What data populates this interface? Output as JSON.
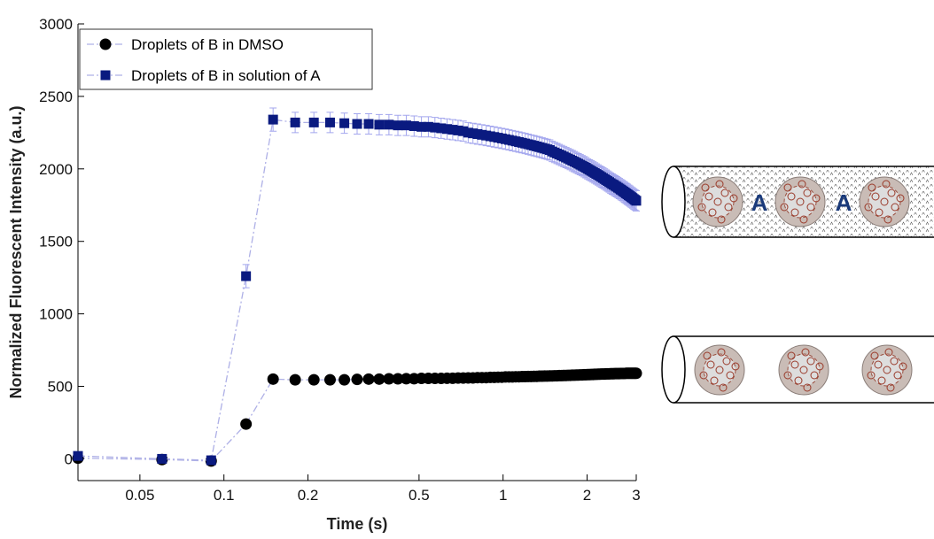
{
  "chart_data": {
    "type": "line",
    "xlabel": "Time (s)",
    "ylabel": "Normalized Fluorescent Intensity (a.u.)",
    "xscale": "log",
    "xlim": [
      0.03,
      3
    ],
    "xticks": [
      0.05,
      0.1,
      0.2,
      0.5,
      1,
      2,
      3
    ],
    "ylim": [
      -150,
      3000
    ],
    "yticks": [
      0,
      500,
      1000,
      1500,
      2000,
      2500,
      3000
    ],
    "legend": "upper left",
    "line_color": "#aeb0e6",
    "error_color": "#a3a6ee",
    "x": [
      0.03,
      0.06,
      0.09,
      0.12,
      0.15,
      0.18,
      0.21,
      0.24,
      0.27,
      0.3,
      0.33,
      0.36,
      0.39,
      0.42,
      0.45,
      0.48,
      0.51,
      0.54,
      0.57,
      0.6,
      0.63,
      0.66,
      0.69,
      0.72,
      0.75,
      0.78,
      0.81,
      0.84,
      0.87,
      0.9,
      0.93,
      0.96,
      0.99,
      1.02,
      1.05,
      1.08,
      1.11,
      1.14,
      1.17,
      1.2,
      1.23,
      1.26,
      1.29,
      1.32,
      1.35,
      1.38,
      1.41,
      1.44,
      1.47,
      1.5,
      1.53,
      1.56,
      1.59,
      1.62,
      1.65,
      1.68,
      1.71,
      1.74,
      1.77,
      1.8,
      1.83,
      1.86,
      1.89,
      1.92,
      1.95,
      1.98,
      2.01,
      2.04,
      2.07,
      2.1,
      2.13,
      2.16,
      2.19,
      2.22,
      2.25,
      2.28,
      2.31,
      2.34,
      2.37,
      2.4,
      2.43,
      2.46,
      2.49,
      2.52,
      2.55,
      2.58,
      2.61,
      2.64,
      2.67,
      2.7,
      2.73,
      2.76,
      2.79,
      2.82,
      2.85,
      2.88,
      2.91,
      2.94,
      2.97,
      3
    ],
    "series": [
      {
        "name": "Droplets of B in DMSO",
        "color": "#000000",
        "marker": "circle",
        "values": [
          5,
          -5,
          -15,
          240,
          550,
          545,
          545,
          545,
          545,
          548,
          550,
          550,
          552,
          552,
          553,
          553,
          555,
          555,
          555,
          555,
          556,
          556,
          557,
          557,
          558,
          558,
          560,
          560,
          560,
          562,
          562,
          563,
          563,
          565,
          565,
          565,
          566,
          566,
          567,
          567,
          568,
          568,
          569,
          569,
          570,
          570,
          571,
          571,
          572,
          572,
          573,
          573,
          574,
          574,
          575,
          575,
          576,
          576,
          577,
          577,
          578,
          578,
          579,
          579,
          580,
          580,
          581,
          581,
          582,
          582,
          583,
          583,
          584,
          584,
          585,
          585,
          585,
          586,
          586,
          586,
          587,
          587,
          587,
          588,
          588,
          588,
          588,
          589,
          589,
          589,
          589,
          590,
          590,
          590,
          590,
          590,
          590,
          590,
          590,
          590
        ]
      },
      {
        "name": "Droplets of B in solution of A",
        "color": "#0a1a80",
        "marker": "square",
        "values": [
          20,
          0,
          -10,
          1260,
          2340,
          2320,
          2320,
          2320,
          2315,
          2310,
          2310,
          2305,
          2305,
          2300,
          2300,
          2295,
          2290,
          2290,
          2285,
          2280,
          2275,
          2270,
          2265,
          2260,
          2250,
          2245,
          2240,
          2235,
          2230,
          2225,
          2220,
          2215,
          2210,
          2205,
          2200,
          2195,
          2190,
          2185,
          2180,
          2175,
          2170,
          2165,
          2160,
          2155,
          2150,
          2145,
          2140,
          2135,
          2130,
          2120,
          2113,
          2106,
          2099,
          2092,
          2085,
          2078,
          2071,
          2064,
          2057,
          2050,
          2043,
          2036,
          2029,
          2022,
          2015,
          2008,
          2000,
          1993,
          1986,
          1979,
          1972,
          1965,
          1958,
          1951,
          1944,
          1937,
          1930,
          1923,
          1916,
          1909,
          1902,
          1895,
          1890,
          1883,
          1877,
          1870,
          1864,
          1857,
          1851,
          1844,
          1838,
          1831,
          1825,
          1818,
          1812,
          1805,
          1799,
          1792,
          1786,
          1780
        ],
        "errors": [
          20,
          20,
          20,
          80,
          80,
          70,
          70,
          70,
          70,
          70,
          70,
          70,
          70,
          70,
          70,
          70,
          70,
          70,
          70,
          70,
          70,
          70,
          70,
          70,
          70,
          70,
          70,
          70,
          70,
          70,
          70,
          70,
          70,
          70,
          70,
          70,
          70,
          70,
          70,
          70,
          70,
          70,
          70,
          70,
          70,
          70,
          70,
          70,
          70,
          70,
          70,
          70,
          70,
          70,
          70,
          70,
          70,
          70,
          70,
          70,
          70,
          70,
          70,
          70,
          70,
          70,
          70,
          70,
          70,
          70,
          70,
          70,
          70,
          70,
          70,
          70,
          70,
          70,
          70,
          70,
          70,
          70,
          70,
          70,
          70,
          70,
          70,
          70,
          70,
          70,
          70,
          70,
          70,
          70,
          70,
          70,
          70,
          70,
          70,
          70
        ]
      }
    ]
  },
  "diagram": {
    "labels": [
      "A",
      "A"
    ]
  }
}
